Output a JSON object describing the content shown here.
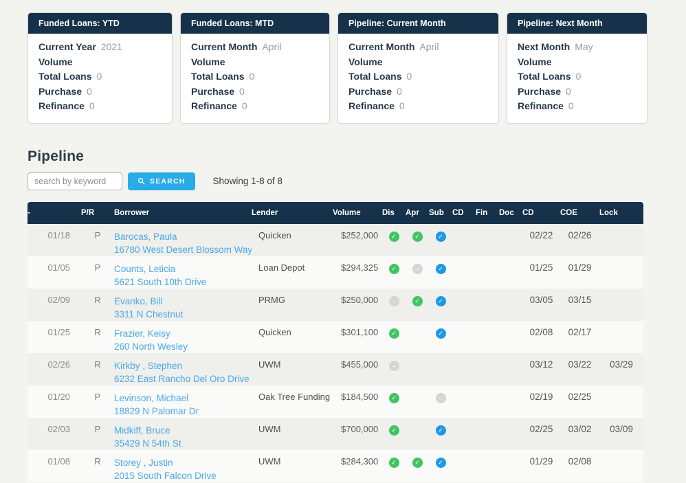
{
  "colors": {
    "navy_header": "#16324a",
    "accent_blue": "#29abe9",
    "link_blue": "#4aa9e9",
    "status_green": "#41c463",
    "status_blue": "#1d99e6",
    "status_gray": "#d9d3d3"
  },
  "icons": {
    "search": "magnifier",
    "check-green": "green-check-circle",
    "check-blue": "blue-check-circle",
    "arrow-gray": "gray-arrow-circle"
  },
  "cards": [
    {
      "title": "Funded Loans: YTD",
      "fields": [
        {
          "label": "Current Year",
          "value": "2021"
        },
        {
          "label": "Volume",
          "value": ""
        },
        {
          "label": "Total Loans",
          "value": "0"
        },
        {
          "label": "Purchase",
          "value": "0"
        },
        {
          "label": "Refinance",
          "value": "0"
        }
      ]
    },
    {
      "title": "Funded Loans: MTD",
      "fields": [
        {
          "label": "Current Month",
          "value": "April"
        },
        {
          "label": "Volume",
          "value": ""
        },
        {
          "label": "Total Loans",
          "value": "0"
        },
        {
          "label": "Purchase",
          "value": "0"
        },
        {
          "label": "Refinance",
          "value": "0"
        }
      ]
    },
    {
      "title": "Pipeline: Current Month",
      "fields": [
        {
          "label": "Current Month",
          "value": "April"
        },
        {
          "label": "Volume",
          "value": ""
        },
        {
          "label": "Total Loans",
          "value": "0"
        },
        {
          "label": "Purchase",
          "value": "0"
        },
        {
          "label": "Refinance",
          "value": "0"
        }
      ]
    },
    {
      "title": "Pipeline: Next Month",
      "fields": [
        {
          "label": "Next Month",
          "value": "May"
        },
        {
          "label": "Volume",
          "value": ""
        },
        {
          "label": "Total Loans",
          "value": "0"
        },
        {
          "label": "Purchase",
          "value": "0"
        },
        {
          "label": "Refinance",
          "value": "0"
        }
      ]
    }
  ],
  "pipeline": {
    "title": "Pipeline",
    "search": {
      "placeholder": "search by keyword",
      "button_label": "SEARCH"
    },
    "showing": "Showing 1-8 of 8",
    "table": {
      "columns": [
        "-",
        "P/R",
        "Borrower",
        "Lender",
        "Volume",
        "Dis",
        "Apr",
        "Sub",
        "CD",
        "Fin",
        "Doc",
        "CD",
        "COE",
        "Lock"
      ],
      "rows": [
        {
          "date": "01/18",
          "p_r": "P",
          "borrower_name": "Barocas, Paula",
          "borrower_address": "16780 West Desert Blossom Way",
          "lender": "Quicken",
          "volume": "$252,000",
          "dis": "check-green",
          "apr": "check-green",
          "sub": "check-blue",
          "cd1": "",
          "fin": "",
          "doc": "",
          "cd2": "02/22",
          "coe": "02/26",
          "lock": ""
        },
        {
          "date": "01/05",
          "p_r": "P",
          "borrower_name": "Counts, Leticia",
          "borrower_address": "5621 South 10th Drive",
          "lender": "Loan Depot",
          "volume": "$294,325",
          "dis": "check-green",
          "apr": "arrow-gray",
          "sub": "check-blue",
          "cd1": "",
          "fin": "",
          "doc": "",
          "cd2": "01/25",
          "coe": "01/29",
          "lock": ""
        },
        {
          "date": "02/09",
          "p_r": "R",
          "borrower_name": "Evanko, Bill",
          "borrower_address": "3311 N Chestnut",
          "lender": "PRMG",
          "volume": "$250,000",
          "dis": "arrow-gray",
          "apr": "check-green",
          "sub": "check-blue",
          "cd1": "",
          "fin": "",
          "doc": "",
          "cd2": "03/05",
          "coe": "03/15",
          "lock": ""
        },
        {
          "date": "01/25",
          "p_r": "R",
          "borrower_name": "Frazier, Keisy",
          "borrower_address": "260 North Wesley",
          "lender": "Quicken",
          "volume": "$301,100",
          "dis": "check-green",
          "apr": "",
          "sub": "check-blue",
          "cd1": "",
          "fin": "",
          "doc": "",
          "cd2": "02/08",
          "coe": "02/17",
          "lock": ""
        },
        {
          "date": "02/26",
          "p_r": "R",
          "borrower_name": "Kirkby , Stephen",
          "borrower_address": "6232 East Rancho Del Oro Drive",
          "lender": "UWM",
          "volume": "$455,000",
          "dis": "arrow-gray",
          "apr": "",
          "sub": "",
          "cd1": "",
          "fin": "",
          "doc": "",
          "cd2": "03/12",
          "coe": "03/22",
          "lock": "03/29"
        },
        {
          "date": "01/20",
          "p_r": "P",
          "borrower_name": "Levinson, Michael",
          "borrower_address": "18829 N Palomar Dr",
          "lender": "Oak Tree Funding",
          "volume": "$184,500",
          "dis": "check-green",
          "apr": "",
          "sub": "arrow-gray",
          "cd1": "",
          "fin": "",
          "doc": "",
          "cd2": "02/19",
          "coe": "02/25",
          "lock": ""
        },
        {
          "date": "02/03",
          "p_r": "P",
          "borrower_name": "Midkiff, Bruce",
          "borrower_address": "35429 N 54th St",
          "lender": "UWM",
          "volume": "$700,000",
          "dis": "check-green",
          "apr": "",
          "sub": "check-blue",
          "cd1": "",
          "fin": "",
          "doc": "",
          "cd2": "02/25",
          "coe": "03/02",
          "lock": "03/09"
        },
        {
          "date": "01/08",
          "p_r": "R",
          "borrower_name": "Storey , Justin",
          "borrower_address": "2015 South Falcon Drive",
          "lender": "UWM",
          "volume": "$284,300",
          "dis": "check-green",
          "apr": "check-green",
          "sub": "check-blue",
          "cd1": "",
          "fin": "",
          "doc": "",
          "cd2": "01/29",
          "coe": "02/08",
          "lock": ""
        }
      ]
    }
  }
}
